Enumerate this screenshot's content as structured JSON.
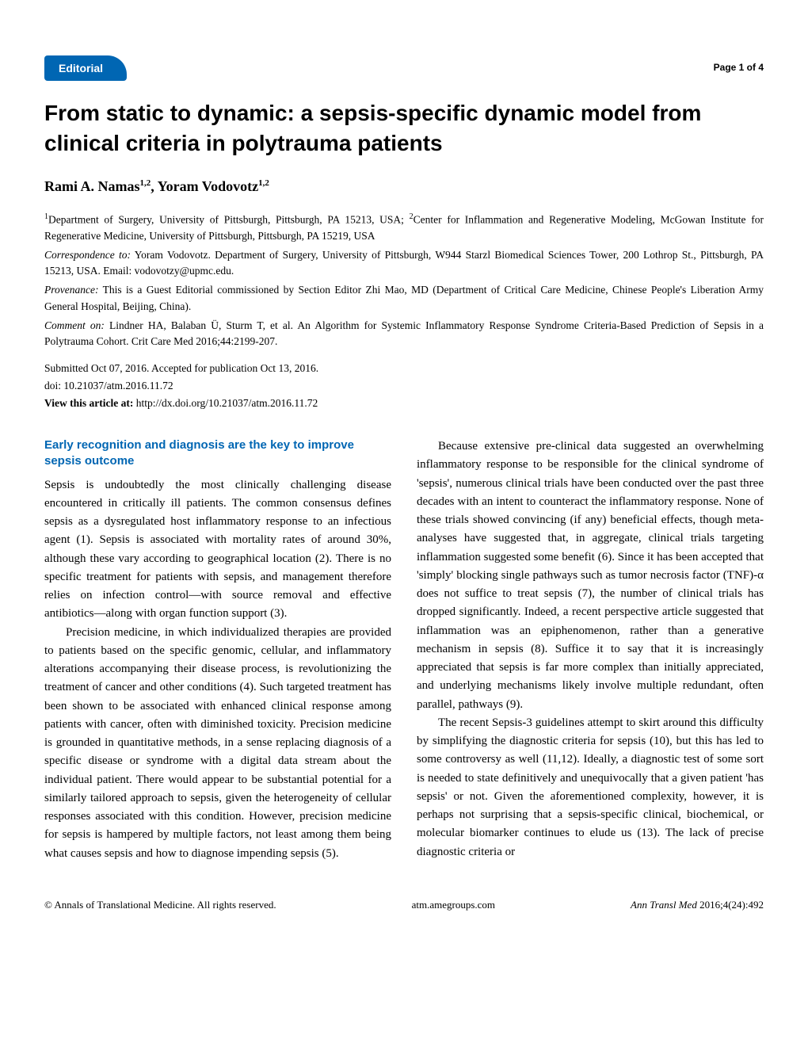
{
  "header": {
    "badge": "Editorial",
    "page_label": "Page 1 of 4",
    "badge_bg": "#0066b3",
    "badge_fg": "#ffffff"
  },
  "title": "From static to dynamic: a sepsis-specific dynamic model from clinical criteria in polytrauma patients",
  "authors_html": "Rami A. Namas<sup>1,2</sup>, Yoram Vodovotz<sup>1,2</sup>",
  "affiliations_html": "<sup>1</sup>Department of Surgery, University of Pittsburgh, Pittsburgh, PA 15213, USA; <sup>2</sup>Center for Inflammation and Regenerative Modeling, McGowan Institute for Regenerative Medicine, University of Pittsburgh, Pittsburgh, PA 15219, USA",
  "correspondence": {
    "label": "Correspondence to:",
    "text": "Yoram Vodovotz. Department of Surgery, University of Pittsburgh, W944 Starzl Biomedical Sciences Tower, 200 Lothrop St., Pittsburgh, PA 15213, USA. Email: vodovotzy@upmc.edu."
  },
  "provenance": {
    "label": "Provenance:",
    "text": "This is a Guest Editorial commissioned by Section Editor Zhi Mao, MD (Department of Critical Care Medicine, Chinese People's Liberation Army General Hospital, Beijing, China)."
  },
  "comment_on": {
    "label": "Comment on:",
    "text": "Lindner HA, Balaban Ü, Sturm T, et al. An Algorithm for Systemic Inflammatory Response Syndrome Criteria-Based Prediction of Sepsis in a Polytrauma Cohort. Crit Care Med 2016;44:2199-207."
  },
  "submitted": "Submitted Oct 07, 2016. Accepted for publication Oct 13, 2016.",
  "doi": "doi: 10.21037/atm.2016.11.72",
  "view_at": {
    "label": "View this article at:",
    "url": "http://dx.doi.org/10.21037/atm.2016.11.72"
  },
  "section_heading": "Early recognition and diagnosis are the key to improve sepsis outcome",
  "body": {
    "p1": "Sepsis is undoubtedly the most clinically challenging disease encountered in critically ill patients. The common consensus defines sepsis as a dysregulated host inflammatory response to an infectious agent (1). Sepsis is associated with mortality rates of around 30%, although these vary according to geographical location (2). There is no specific treatment for patients with sepsis, and management therefore relies on infection control—with source removal and effective antibiotics—along with organ function support (3).",
    "p2": "Precision medicine, in which individualized therapies are provided to patients based on the specific genomic, cellular, and inflammatory alterations accompanying their disease process, is revolutionizing the treatment of cancer and other conditions (4). Such targeted treatment has been shown to be associated with enhanced clinical response among patients with cancer, often with diminished toxicity. Precision medicine is grounded in quantitative methods, in a sense replacing diagnosis of a specific disease or syndrome with a digital data stream about the individual patient. There would appear to be substantial potential for a similarly tailored approach to sepsis, given the heterogeneity of cellular responses associated with this condition. However, precision medicine for sepsis is hampered by multiple factors, not least among them being what causes sepsis and how to diagnose impending sepsis (5).",
    "p3": "Because extensive pre-clinical data suggested an overwhelming inflammatory response to be responsible for the clinical syndrome of 'sepsis', numerous clinical trials have been conducted over the past three decades with an intent to counteract the inflammatory response. None of these trials showed convincing (if any) beneficial effects, though meta-analyses have suggested that, in aggregate, clinical trials targeting inflammation suggested some benefit (6). Since it has been accepted that 'simply' blocking single pathways such as tumor necrosis factor (TNF)-α does not suffice to treat sepsis (7), the number of clinical trials has dropped significantly. Indeed, a recent perspective article suggested that inflammation was an epiphenomenon, rather than a generative mechanism in sepsis (8). Suffice it to say that it is increasingly appreciated that sepsis is far more complex than initially appreciated, and underlying mechanisms likely involve multiple redundant, often parallel, pathways (9).",
    "p4": "The recent Sepsis-3 guidelines attempt to skirt around this difficulty by simplifying the diagnostic criteria for sepsis (10), but this has led to some controversy as well (11,12). Ideally, a diagnostic test of some sort is needed to state definitively and unequivocally that a given patient 'has sepsis' or not. Given the aforementioned complexity, however, it is perhaps not surprising that a sepsis-specific clinical, biochemical, or molecular biomarker continues to elude us (13). The lack of precise diagnostic criteria or"
  },
  "footer": {
    "left": "© Annals of Translational Medicine. All rights reserved.",
    "center": "atm.amegroups.com",
    "right_journal": "Ann Transl Med",
    "right_citation": "2016;4(24):492"
  },
  "colors": {
    "accent": "#0066b3",
    "text": "#000000",
    "background": "#ffffff"
  },
  "typography": {
    "title_family": "Arial",
    "title_size_pt": 21,
    "body_family": "Times New Roman",
    "body_size_pt": 11,
    "section_head_color": "#0066b3"
  }
}
